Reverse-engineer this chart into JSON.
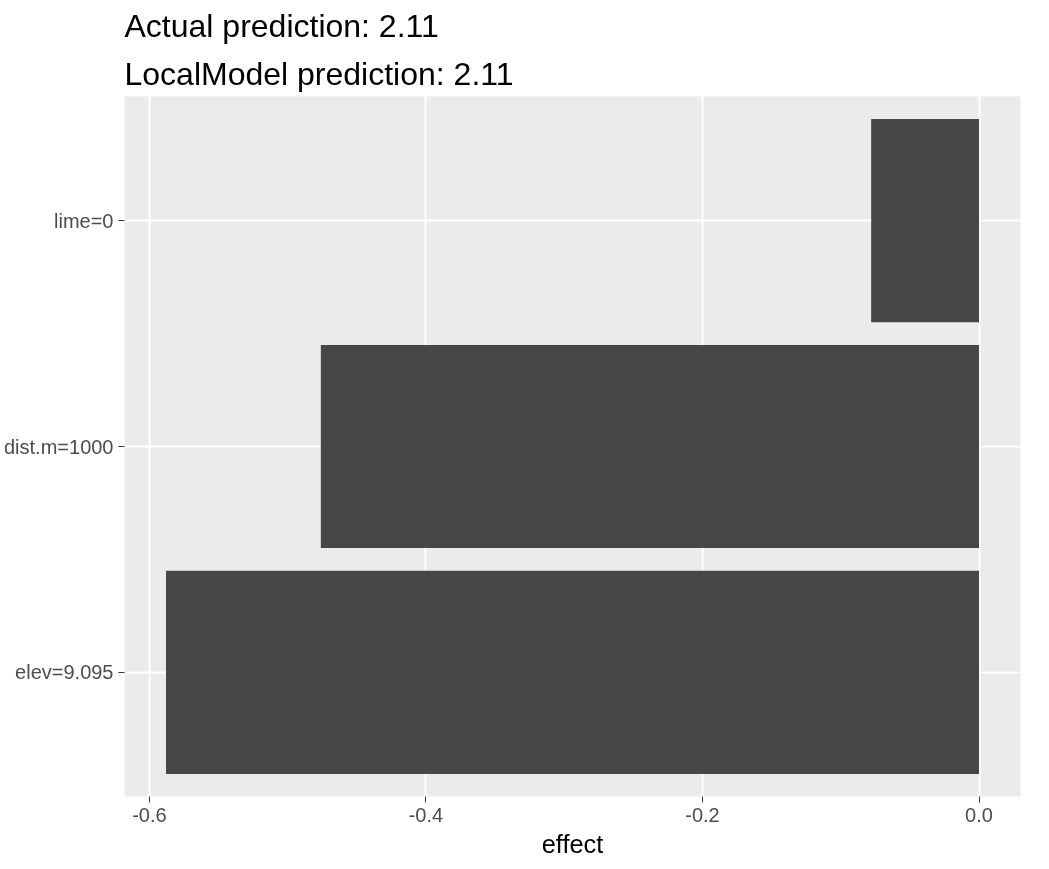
{
  "chart_data": {
    "type": "bar",
    "orientation": "horizontal",
    "title": "Actual prediction: 2.11",
    "subtitle": "LocalModel prediction: 2.11",
    "xlabel": "effect",
    "categories": [
      "lime=0",
      "dist.m=1000",
      "elev=9.095"
    ],
    "values": [
      -0.078,
      -0.476,
      -0.588
    ],
    "color": "#474747",
    "xlim": [
      -0.618,
      0.03
    ],
    "xticks": [
      {
        "value": -0.6,
        "label": "-0.6"
      },
      {
        "value": -0.4,
        "label": "-0.4"
      },
      {
        "value": -0.2,
        "label": "-0.2"
      },
      {
        "value": 0,
        "label": "0.0"
      }
    ],
    "grid": true
  }
}
